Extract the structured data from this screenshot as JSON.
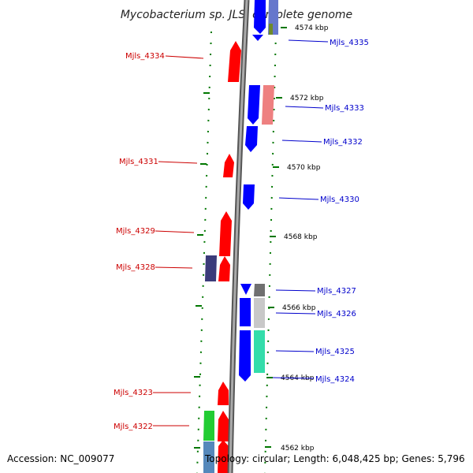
{
  "title": "Mycobacterium sp. JLS, complete genome",
  "footer": {
    "accession": "Accession: NC_009077",
    "topology": "Topology: circular; Length: 6,048,425 bp; Genes: 5,796"
  },
  "colors": {
    "forward_label": "#cc0000",
    "reverse_label": "#0000cc",
    "forward_gene": "#ff0000",
    "reverse_gene": "#0000ff",
    "ruler_tick": "#007700",
    "backbone": "#888888"
  },
  "ruler": [
    "4574 kbp",
    "4572 kbp",
    "4570 kbp",
    "4568 kbp",
    "4566 kbp",
    "4564 kbp",
    "4562 kbp"
  ],
  "left_labels": [
    "Mjls_4334",
    "Mjls_4331",
    "Mjls_4329",
    "Mjls_4328",
    "Mjls_4323",
    "Mjls_4322"
  ],
  "right_labels": [
    "Mjls_4335",
    "Mjls_4333",
    "Mjls_4332",
    "Mjls_4330",
    "Mjls_4327",
    "Mjls_4326",
    "Mjls_4325",
    "Mjls_4324"
  ]
}
